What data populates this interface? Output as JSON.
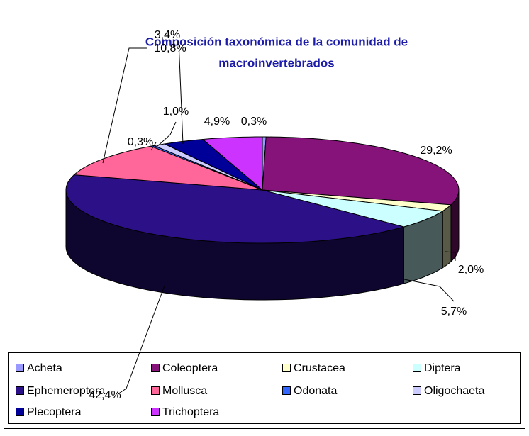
{
  "chart_data": {
    "type": "pie3d",
    "title": [
      "Composición taxonómica de la comunidad de",
      "macroinvertebrados"
    ],
    "categories": [
      "Acheta",
      "Coleoptera",
      "Crustacea",
      "Diptera",
      "Ephemeroptera",
      "Mollusca",
      "Odonata",
      "Oligochaeta",
      "Plecoptera",
      "Trichoptera"
    ],
    "values": [
      0.3,
      29.2,
      2.0,
      5.7,
      42.4,
      10.8,
      0.3,
      1.0,
      3.4,
      4.9
    ],
    "value_labels": [
      "0,3%",
      "29,2%",
      "2,0%",
      "5,7%",
      "42,4%",
      "10,8%",
      "0,3%",
      "1,0%",
      "3,4%",
      "4,9%"
    ],
    "colors": [
      "#9999ff",
      "#85137a",
      "#ffffcc",
      "#ccffff",
      "#2c1088",
      "#ff6699",
      "#3366ff",
      "#ccccff",
      "#000099",
      "#cc33ff"
    ],
    "legend": "bottom"
  }
}
